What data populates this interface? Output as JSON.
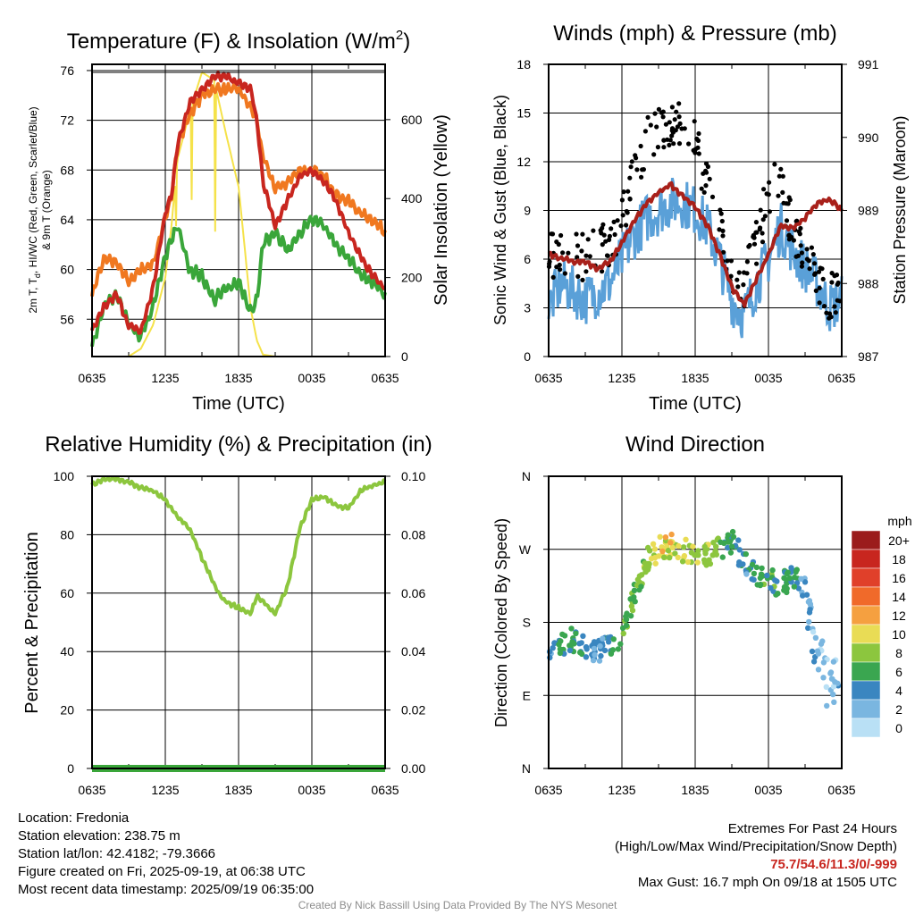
{
  "colors": {
    "red": "#c8261f",
    "green": "#3aa63a",
    "orange": "#f07820",
    "yellow": "#f5e24a",
    "blue": "#5aa0d8",
    "black": "#000000",
    "maroon": "#a8201a",
    "rh": "#8cc63e",
    "precip": "#3aa63a"
  },
  "time_ticks": [
    "0635",
    "1235",
    "1835",
    "0035",
    "0635"
  ],
  "panels": [
    {
      "id": "temperature",
      "title_main": "Temperature (F) & Insolation (W/m",
      "title_sup": "2",
      "title_end": ")",
      "xlabel": "Time (UTC)",
      "ylabel_left_line1": "2m T, T",
      "ylabel_left_sub": "d",
      "ylabel_left_line1_end": ", HI/WC (Red, Green, Scarlet/Blue)",
      "ylabel_left_line2": "& 9m T (Orange)",
      "ylabel_right": "Solar Insolation (Yellow)",
      "yticks_left": [
        "56",
        "60",
        "64",
        "68",
        "72",
        "76"
      ],
      "yticks_right": [
        "0",
        "200",
        "400",
        "600"
      ]
    },
    {
      "id": "winds",
      "title": "Winds (mph) & Pressure (mb)",
      "xlabel": "Time (UTC)",
      "ylabel_left": "Sonic Wind & Gust (Blue, Black)",
      "ylabel_right": "Station Pressure (Maroon)",
      "yticks_left": [
        "0",
        "3",
        "6",
        "9",
        "12",
        "15",
        "18"
      ],
      "yticks_right": [
        "987",
        "988",
        "989",
        "990",
        "991"
      ]
    },
    {
      "id": "humidity",
      "title": "Relative Humidity (%) & Precipitation (in)",
      "ylabel_left": "Percent & Precipitation",
      "yticks_left": [
        "0",
        "20",
        "40",
        "60",
        "80",
        "100"
      ],
      "yticks_right": [
        "0.00",
        "0.02",
        "0.04",
        "0.06",
        "0.08",
        "0.10"
      ]
    },
    {
      "id": "direction",
      "title": "Wind Direction",
      "ylabel_left": "Direction (Colored By Speed)",
      "yticks_left": [
        "N",
        "E",
        "S",
        "W",
        "N"
      ],
      "legend_title": "mph",
      "legend_labels": [
        "20+",
        "18",
        "16",
        "14",
        "12",
        "10",
        "8",
        "6",
        "4",
        "2",
        "0"
      ],
      "legend_colors": [
        "#9b1c1c",
        "#c8261f",
        "#e0402a",
        "#f06a2a",
        "#f5a040",
        "#e9dc55",
        "#8cc63e",
        "#3aa650",
        "#3a86c0",
        "#7ab6e0",
        "#b9e0f5"
      ]
    }
  ],
  "chart_data": [
    {
      "type": "line",
      "title": "Temperature (F) & Insolation (W/m2)",
      "xlabel": "Time (UTC)",
      "x": [
        0,
        1,
        2,
        3,
        4,
        5,
        6,
        6.5,
        7,
        8,
        9,
        10,
        11,
        12,
        13,
        13.5,
        14,
        15,
        16,
        17,
        18,
        19,
        20,
        21,
        22,
        23,
        24
      ],
      "x_tick_labels": [
        "0635",
        "1235",
        "1835",
        "0035",
        "0635"
      ],
      "ylim": [
        53,
        76.5
      ],
      "y2lim": [
        0,
        740
      ],
      "series": [
        {
          "name": "2m T (Red)",
          "values": [
            55.0,
            57.0,
            58.0,
            55.5,
            55.0,
            58.5,
            64.5,
            66.0,
            70.0,
            73.5,
            74.5,
            75.5,
            75.5,
            75.0,
            74.5,
            72.0,
            67.0,
            63.5,
            65.5,
            67.5,
            68.0,
            67.0,
            65.5,
            63.0,
            61.0,
            59.5,
            58.5
          ]
        },
        {
          "name": "HI/WC (Scarlet)",
          "values": [
            55.0,
            57.0,
            58.0,
            55.5,
            55.0,
            58.5,
            64.5,
            66.0,
            70.0,
            73.5,
            74.5,
            75.5,
            75.5,
            75.0,
            74.5,
            72.0,
            67.0,
            63.5,
            65.5,
            67.5,
            68.0,
            67.0,
            65.5,
            63.0,
            61.0,
            59.5,
            58.5
          ]
        },
        {
          "name": "Td (Green)",
          "values": [
            54.0,
            57.0,
            58.0,
            55.5,
            54.5,
            57.0,
            61.0,
            62.5,
            63.5,
            60.0,
            59.5,
            57.5,
            58.5,
            59.0,
            56.5,
            57.5,
            62.0,
            63.0,
            61.5,
            63.0,
            64.0,
            63.5,
            62.0,
            61.0,
            59.5,
            59.0,
            58.0
          ]
        },
        {
          "name": "9m T (Orange)",
          "values": [
            58.0,
            61.0,
            60.5,
            59.0,
            60.0,
            60.5,
            64.0,
            66.0,
            70.0,
            72.5,
            74.0,
            74.5,
            74.5,
            74.5,
            73.0,
            72.0,
            69.0,
            66.5,
            67.0,
            68.0,
            68.0,
            67.5,
            66.0,
            65.5,
            64.5,
            64.0,
            63.0
          ]
        },
        {
          "name": "Solar Insolation (Yellow)",
          "axis": "right",
          "values": [
            0,
            0,
            0,
            0,
            20,
            80,
            200,
            330,
            500,
            620,
            720,
            700,
            560,
            430,
            120,
            40,
            5,
            0,
            0,
            0,
            0,
            0,
            0,
            0,
            0,
            0,
            0
          ]
        }
      ]
    },
    {
      "type": "line",
      "title": "Winds (mph) & Pressure (mb)",
      "xlabel": "Time (UTC)",
      "x": [
        0,
        1,
        2,
        3,
        4,
        5,
        6,
        7,
        8,
        9,
        10,
        11,
        12,
        13,
        14,
        15,
        16,
        17,
        18,
        19,
        20,
        21,
        22,
        23,
        24
      ],
      "x_tick_labels": [
        "0635",
        "1235",
        "1835",
        "0035",
        "0635"
      ],
      "ylim": [
        0,
        18
      ],
      "y2lim": [
        987,
        991
      ],
      "series": [
        {
          "name": "Sonic Wind (Blue)",
          "values": [
            3.0,
            4.5,
            4.0,
            3.5,
            4.0,
            4.5,
            6.0,
            7.5,
            8.5,
            9.0,
            9.5,
            9.5,
            9.0,
            8.0,
            6.0,
            3.5,
            2.5,
            4.5,
            6.0,
            8.0,
            6.5,
            5.5,
            4.5,
            3.0,
            3.5
          ]
        },
        {
          "name": "Gust (Black)",
          "values": [
            6.0,
            6.5,
            6.5,
            6.0,
            6.5,
            7.0,
            8.5,
            11.0,
            13.5,
            14.0,
            14.5,
            14.0,
            13.0,
            10.5,
            8.0,
            5.5,
            4.5,
            7.0,
            10.0,
            11.0,
            7.5,
            6.5,
            5.0,
            3.5,
            4.5
          ]
        },
        {
          "name": "Station Pressure (Maroon)",
          "axis": "right",
          "values": [
            988.4,
            988.35,
            988.3,
            988.3,
            988.2,
            988.3,
            988.55,
            988.85,
            989.1,
            989.25,
            989.35,
            989.2,
            989.05,
            988.8,
            988.4,
            987.95,
            987.7,
            988.05,
            988.4,
            988.8,
            988.75,
            988.9,
            989.1,
            989.15,
            989.0
          ]
        }
      ]
    },
    {
      "type": "line",
      "title": "Relative Humidity (%) & Precipitation (in)",
      "x": [
        0,
        1,
        2,
        3,
        4,
        5,
        6,
        7,
        8,
        9,
        10,
        10.5,
        11,
        12,
        13,
        13.5,
        14,
        15,
        16,
        17,
        18,
        19,
        20,
        21,
        22,
        23,
        24
      ],
      "x_tick_labels": [
        "0635",
        "1235",
        "1835",
        "0035",
        "0635"
      ],
      "ylim": [
        0,
        100
      ],
      "y2lim": [
        0,
        0.1
      ],
      "series": [
        {
          "name": "Relative Humidity",
          "values": [
            97,
            99,
            99,
            98,
            96,
            95,
            92,
            86,
            82,
            72,
            63,
            59,
            57,
            55,
            53,
            59,
            57,
            53,
            62,
            82,
            92,
            93,
            90,
            89,
            95,
            97,
            98
          ]
        },
        {
          "name": "Precipitation",
          "axis": "right",
          "values": [
            0,
            0,
            0,
            0,
            0,
            0,
            0,
            0,
            0,
            0,
            0,
            0,
            0,
            0,
            0,
            0,
            0,
            0,
            0,
            0,
            0,
            0,
            0,
            0,
            0,
            0,
            0
          ]
        }
      ]
    },
    {
      "type": "scatter",
      "title": "Wind Direction",
      "x": [
        0,
        1,
        2,
        3,
        4,
        5,
        6,
        7,
        8,
        9,
        10,
        11,
        12,
        13,
        14,
        15,
        16,
        17,
        18,
        19,
        20,
        21,
        22,
        23,
        24
      ],
      "x_tick_labels": [
        "0635",
        "1235",
        "1835",
        "0035",
        "0635"
      ],
      "ylim": [
        0,
        360
      ],
      "ytick_values": [
        0,
        90,
        180,
        270,
        360
      ],
      "y_tick_labels": [
        "N",
        "E",
        "S",
        "W",
        "N"
      ],
      "series": [
        {
          "name": "Direction (deg)",
          "values": [
            150,
            155,
            158,
            150,
            145,
            155,
            160,
            215,
            255,
            270,
            275,
            268,
            265,
            262,
            270,
            280,
            255,
            240,
            235,
            225,
            238,
            220,
            160,
            120,
            135
          ],
          "speed_mph": [
            3,
            5,
            6,
            4,
            3,
            5,
            6,
            7,
            8,
            10,
            10,
            9,
            9,
            8,
            7,
            5,
            4,
            6,
            6,
            6,
            4,
            3,
            2,
            1,
            3
          ]
        }
      ]
    }
  ],
  "info_left": {
    "location": "Location: Fredonia",
    "elevation": "Station elevation: 238.75 m",
    "latlon": "Station lat/lon: 42.4182; -79.3666",
    "created": "Figure created on Fri, 2025-09-19, at 06:38 UTC",
    "recent": "Most recent data timestamp: 2025/09/19 06:35:00"
  },
  "info_right": {
    "extremes_title": "Extremes For Past 24 Hours",
    "extremes_subtitle": "(High/Low/Max Wind/Precipitation/Snow Depth)",
    "extremes_values": "75.7/54.6/11.3/0/-999",
    "max_gust": "Max Gust: 16.7 mph On 09/18 at 1505 UTC"
  },
  "credit": "Created By Nick Bassill Using Data Provided By The NYS Mesonet"
}
